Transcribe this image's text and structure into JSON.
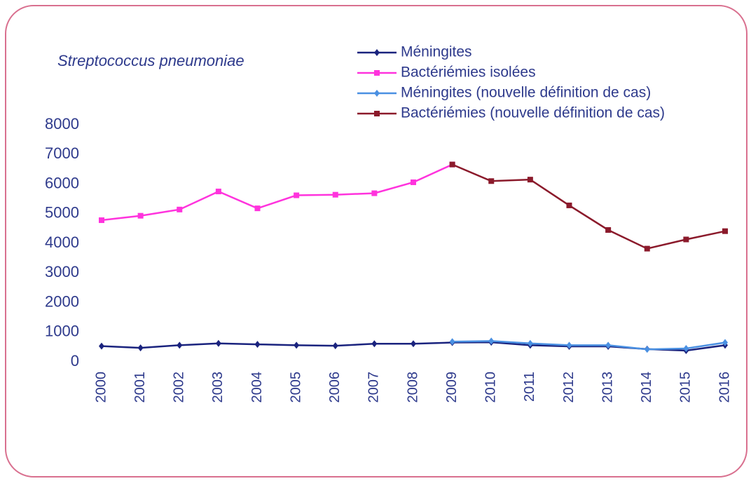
{
  "chart_data": {
    "type": "line",
    "title": "Streptococcus pneumoniae",
    "categories": [
      "2000",
      "2001",
      "2002",
      "2003",
      "2004",
      "2005",
      "2006",
      "2007",
      "2008",
      "2009",
      "2010",
      "2011",
      "2012",
      "2013",
      "2014",
      "2015",
      "2016"
    ],
    "series": [
      {
        "name": "Méningites",
        "color": "#1a237e",
        "marker": "diamond",
        "values": [
          530,
          470,
          560,
          620,
          590,
          560,
          540,
          610,
          610,
          650,
          660,
          560,
          520,
          520,
          430,
          380,
          560
        ]
      },
      {
        "name": "Bactériémies isolées",
        "color": "#ff33dd",
        "marker": "square",
        "values": [
          4780,
          4930,
          5140,
          5750,
          5180,
          5620,
          5640,
          5690,
          6060,
          6660,
          null,
          null,
          null,
          null,
          null,
          null,
          null
        ]
      },
      {
        "name": "Méningites (nouvelle définition de cas)",
        "color": "#4a90e2",
        "marker": "diamond",
        "values": [
          null,
          null,
          null,
          null,
          null,
          null,
          null,
          null,
          null,
          680,
          700,
          620,
          560,
          560,
          420,
          450,
          650
        ]
      },
      {
        "name": "Bactériémies (nouvelle définition de cas)",
        "color": "#8b1a2b",
        "marker": "square",
        "values": [
          null,
          null,
          null,
          null,
          null,
          null,
          null,
          null,
          null,
          6660,
          6100,
          6150,
          5280,
          4450,
          3820,
          4130,
          4410
        ]
      }
    ],
    "ylim": [
      0,
      8000
    ],
    "yticks": [
      0,
      1000,
      2000,
      3000,
      4000,
      5000,
      6000,
      7000,
      8000
    ],
    "grid": false
  }
}
